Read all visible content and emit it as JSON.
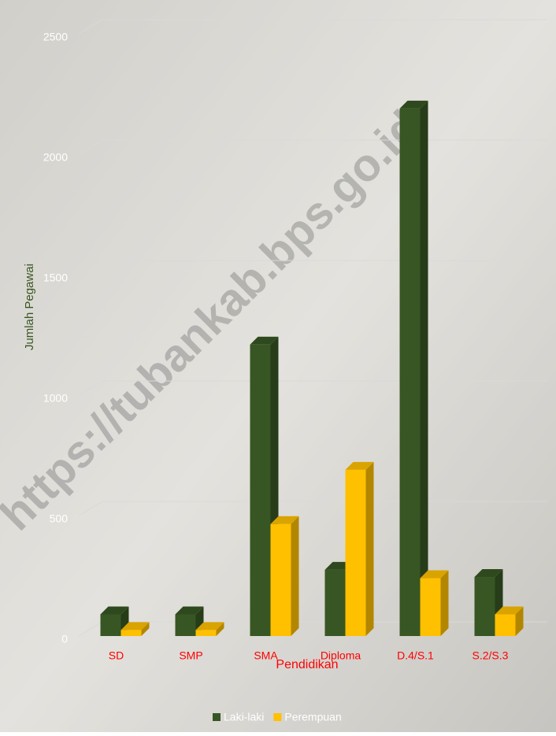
{
  "chart_data": {
    "type": "bar",
    "watermark": "https://tubankab.bps.go.id",
    "ylabel": "Jumlah Pegawai",
    "xlabel": "Pendidikan",
    "categories": [
      "SD",
      "SMP",
      "SMA",
      "Diploma",
      "D.4/S.1",
      "S.2/S.3"
    ],
    "series": [
      {
        "name": "Laki-laki",
        "color": "#375623",
        "values": [
          90,
          90,
          1210,
          275,
          2190,
          245
        ]
      },
      {
        "name": "Perempuan",
        "color": "#ffc000",
        "values": [
          25,
          25,
          465,
          690,
          240,
          90
        ]
      }
    ],
    "ylim": [
      0,
      2500
    ],
    "yticks": [
      0,
      500,
      1000,
      1500,
      2000,
      2500
    ],
    "grid": true,
    "legend": "bottom"
  }
}
